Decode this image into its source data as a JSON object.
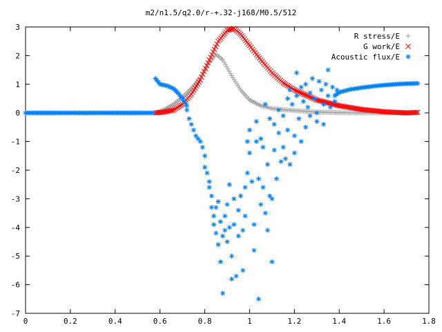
{
  "chart_data": {
    "type": "scatter",
    "title": "m2/n1.5/q2.0/r-+.32-j168/M0.5/512",
    "xlabel": "",
    "ylabel": "",
    "xlim": [
      0,
      1.8
    ],
    "ylim": [
      -7,
      3
    ],
    "xticks": [
      "0",
      "0.2",
      "0.4",
      "0.6",
      "0.8",
      "1",
      "1.2",
      "1.4",
      "1.6",
      "1.8"
    ],
    "yticks": [
      "3",
      "2",
      "1",
      "0",
      "-1",
      "-2",
      "-3",
      "-4",
      "-5",
      "-6",
      "-7"
    ],
    "xtick_values": [
      0,
      0.2,
      0.4,
      0.6,
      0.8,
      1.0,
      1.2,
      1.4,
      1.6,
      1.8
    ],
    "ytick_values": [
      3,
      2,
      1,
      0,
      -1,
      -2,
      -3,
      -4,
      -5,
      -6,
      -7
    ],
    "grid": false,
    "legend_position": "top-right",
    "series": [
      {
        "name": "R stress/E",
        "marker": "plus",
        "color": "#a0a0a0",
        "curve": [
          [
            0.58,
            0.0
          ],
          [
            0.62,
            0.12
          ],
          [
            0.66,
            0.3
          ],
          [
            0.7,
            0.55
          ],
          [
            0.74,
            0.85
          ],
          [
            0.78,
            1.25
          ],
          [
            0.82,
            1.75
          ],
          [
            0.85,
            2.05
          ],
          [
            0.88,
            1.85
          ],
          [
            0.92,
            1.3
          ],
          [
            0.96,
            0.8
          ],
          [
            1.0,
            0.45
          ],
          [
            1.05,
            0.25
          ],
          [
            1.1,
            0.15
          ],
          [
            1.2,
            0.08
          ],
          [
            1.3,
            0.03
          ],
          [
            1.4,
            0.01
          ],
          [
            1.5,
            0.0
          ],
          [
            1.6,
            0.0
          ],
          [
            1.75,
            0.0
          ]
        ]
      },
      {
        "name": "G work/E",
        "marker": "cross",
        "color": "#ff0000",
        "curve": [
          [
            0.58,
            0.0
          ],
          [
            0.62,
            0.03
          ],
          [
            0.66,
            0.1
          ],
          [
            0.7,
            0.3
          ],
          [
            0.74,
            0.65
          ],
          [
            0.78,
            1.15
          ],
          [
            0.82,
            1.85
          ],
          [
            0.86,
            2.5
          ],
          [
            0.9,
            2.88
          ],
          [
            0.93,
            2.95
          ],
          [
            0.96,
            2.75
          ],
          [
            1.0,
            2.35
          ],
          [
            1.05,
            1.85
          ],
          [
            1.1,
            1.4
          ],
          [
            1.15,
            1.05
          ],
          [
            1.2,
            0.8
          ],
          [
            1.3,
            0.45
          ],
          [
            1.4,
            0.25
          ],
          [
            1.5,
            0.12
          ],
          [
            1.6,
            0.04
          ],
          [
            1.7,
            0.0
          ],
          [
            1.75,
            0.02
          ]
        ]
      },
      {
        "name": "Acoustic flux/E",
        "marker": "star",
        "color": "#0080ff",
        "curve": [
          [
            0.0,
            0.0
          ],
          [
            0.2,
            0.0
          ],
          [
            0.4,
            0.0
          ],
          [
            0.57,
            0.0
          ]
        ],
        "branch": [
          [
            0.58,
            1.2
          ],
          [
            0.6,
            1.0
          ],
          [
            0.63,
            0.95
          ],
          [
            0.66,
            0.85
          ],
          [
            0.68,
            0.7
          ],
          [
            0.7,
            0.5
          ],
          [
            0.72,
            0.25
          ]
        ],
        "tail": [
          [
            1.38,
            0.6
          ],
          [
            1.4,
            0.72
          ],
          [
            1.45,
            0.82
          ],
          [
            1.5,
            0.88
          ],
          [
            1.55,
            0.93
          ],
          [
            1.6,
            0.97
          ],
          [
            1.65,
            1.0
          ],
          [
            1.7,
            1.02
          ],
          [
            1.75,
            1.03
          ]
        ],
        "points": [
          [
            0.72,
            0.1
          ],
          [
            0.73,
            -0.2
          ],
          [
            0.74,
            -0.4
          ],
          [
            0.75,
            -0.6
          ],
          [
            0.76,
            -0.8
          ],
          [
            0.77,
            -0.9
          ],
          [
            0.78,
            -1.0
          ],
          [
            0.79,
            -1.2
          ],
          [
            0.8,
            -1.5
          ],
          [
            0.8,
            -1.9
          ],
          [
            0.81,
            -2.1
          ],
          [
            0.82,
            -2.4
          ],
          [
            0.82,
            -2.6
          ],
          [
            0.83,
            -2.9
          ],
          [
            0.83,
            -3.3
          ],
          [
            0.84,
            -3.6
          ],
          [
            0.84,
            -3.9
          ],
          [
            0.85,
            -3.3
          ],
          [
            0.85,
            -4.2
          ],
          [
            0.86,
            -3.1
          ],
          [
            0.86,
            -4.6
          ],
          [
            0.87,
            -3.8
          ],
          [
            0.87,
            -5.2
          ],
          [
            0.88,
            -6.3
          ],
          [
            0.88,
            -4.3
          ],
          [
            0.89,
            -3.6
          ],
          [
            0.89,
            -4.1
          ],
          [
            0.9,
            -4.5
          ],
          [
            0.9,
            -3.2
          ],
          [
            0.91,
            -2.5
          ],
          [
            0.91,
            -4.0
          ],
          [
            0.92,
            -5.0
          ],
          [
            0.92,
            -5.8
          ],
          [
            0.93,
            -3.9
          ],
          [
            0.93,
            -3.0
          ],
          [
            0.94,
            -5.7
          ],
          [
            0.95,
            -4.3
          ],
          [
            0.95,
            -3.4
          ],
          [
            0.96,
            -2.9
          ],
          [
            0.97,
            -4.1
          ],
          [
            0.97,
            -5.5
          ],
          [
            0.98,
            -3.6
          ],
          [
            0.98,
            -2.6
          ],
          [
            0.99,
            -1.0
          ],
          [
            0.99,
            -2.1
          ],
          [
            1.0,
            -1.4
          ],
          [
            1.0,
            -0.6
          ],
          [
            1.01,
            -2.4
          ],
          [
            1.02,
            -3.9
          ],
          [
            1.02,
            -4.8
          ],
          [
            1.03,
            -1.0
          ],
          [
            1.03,
            -0.3
          ],
          [
            1.04,
            -6.5
          ],
          [
            1.04,
            -2.3
          ],
          [
            1.05,
            -3.2
          ],
          [
            1.05,
            -0.9
          ],
          [
            1.06,
            -1.2
          ],
          [
            1.06,
            -2.6
          ],
          [
            1.07,
            0.3
          ],
          [
            1.07,
            -3.5
          ],
          [
            1.08,
            -4.1
          ],
          [
            1.08,
            -1.8
          ],
          [
            1.09,
            -0.2
          ],
          [
            1.09,
            -2.9
          ],
          [
            1.1,
            -5.2
          ],
          [
            1.1,
            -3.0
          ],
          [
            1.11,
            -0.4
          ],
          [
            1.11,
            -1.3
          ],
          [
            1.12,
            -2.3
          ],
          [
            1.13,
            0.1
          ],
          [
            1.13,
            -0.7
          ],
          [
            1.14,
            -1.7
          ],
          [
            1.15,
            -1.2
          ],
          [
            1.15,
            -0.1
          ],
          [
            1.16,
            -1.6
          ],
          [
            1.17,
            0.5
          ],
          [
            1.17,
            -0.6
          ],
          [
            1.18,
            0.8
          ],
          [
            1.18,
            -1.8
          ],
          [
            1.19,
            0.3
          ],
          [
            1.2,
            -0.8
          ],
          [
            1.2,
            -1.4
          ],
          [
            1.21,
            0.6
          ],
          [
            1.21,
            1.4
          ],
          [
            1.22,
            -0.2
          ],
          [
            1.23,
            0.9
          ],
          [
            1.23,
            -1.0
          ],
          [
            1.24,
            0.4
          ],
          [
            1.25,
            -0.5
          ],
          [
            1.25,
            1.0
          ],
          [
            1.26,
            0.2
          ],
          [
            1.27,
            -0.1
          ],
          [
            1.27,
            0.7
          ],
          [
            1.28,
            1.2
          ],
          [
            1.29,
            0.5
          ],
          [
            1.3,
            0.0
          ],
          [
            1.3,
            -0.3
          ],
          [
            1.31,
            1.1
          ],
          [
            1.32,
            0.8
          ],
          [
            1.33,
            0.3
          ],
          [
            1.33,
            -0.4
          ],
          [
            1.34,
            1.0
          ],
          [
            1.35,
            1.5
          ],
          [
            1.35,
            0.6
          ],
          [
            1.36,
            0.2
          ],
          [
            1.37,
            0.9
          ],
          [
            1.38,
            0.4
          ],
          [
            1.39,
            0.8
          ]
        ]
      }
    ]
  }
}
